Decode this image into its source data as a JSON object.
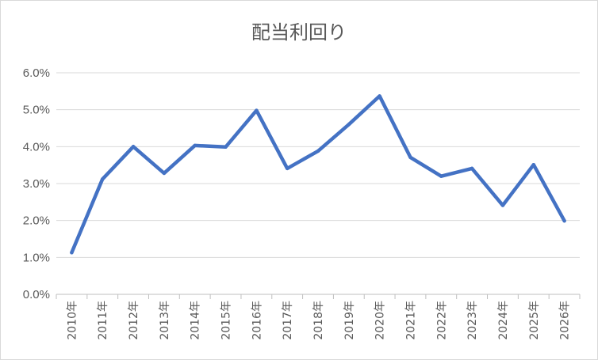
{
  "chart_data": {
    "type": "line",
    "title": "配当利回り",
    "xlabel": "",
    "ylabel": "",
    "categories": [
      "2010年",
      "2011年",
      "2012年",
      "2013年",
      "2014年",
      "2015年",
      "2016年",
      "2017年",
      "2018年",
      "2019年",
      "2020年",
      "2021年",
      "2022年",
      "2023年",
      "2024年",
      "2025年",
      "2026年"
    ],
    "series": [
      {
        "values": [
          1.13,
          3.12,
          4.0,
          3.28,
          4.03,
          3.99,
          4.98,
          3.41,
          3.88,
          4.6,
          5.37,
          3.71,
          3.2,
          3.41,
          2.41,
          3.51,
          1.99
        ]
      }
    ],
    "ylim": [
      0,
      6
    ],
    "yticks": [
      0,
      1,
      2,
      3,
      4,
      5,
      6
    ],
    "ytick_labels": [
      "0.0%",
      "1.0%",
      "2.0%",
      "3.0%",
      "4.0%",
      "5.0%",
      "6.0%"
    ],
    "grid": true,
    "legend": "none",
    "colors": {
      "series": "#4472c4",
      "grid": "#d9d9d9",
      "text": "#595959"
    }
  }
}
